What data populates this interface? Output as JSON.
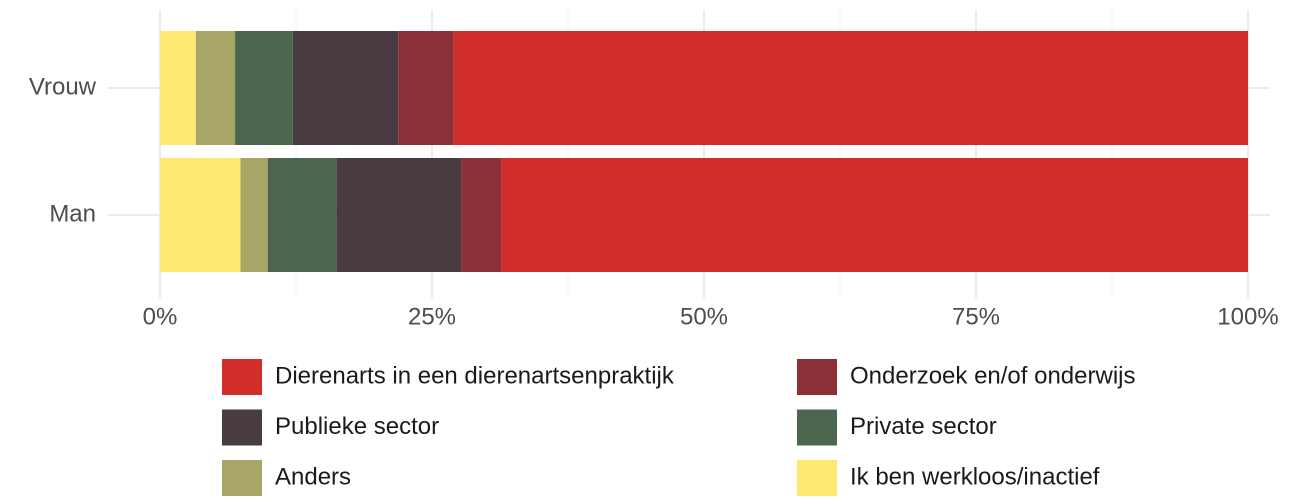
{
  "chart_data": {
    "type": "stacked_bar_horizontal",
    "categories": [
      "Vrouw",
      "Man"
    ],
    "series": [
      {
        "name": "Dierenarts in een dierenartsenpraktijk",
        "color": "#d12d2b",
        "values": [
          73.0,
          68.6
        ]
      },
      {
        "name": "Onderzoek en/of onderwijs",
        "color": "#8b3037",
        "values": [
          5.1,
          3.7
        ]
      },
      {
        "name": "Publieke sector",
        "color": "#483c42",
        "values": [
          9.7,
          11.5
        ]
      },
      {
        "name": "Private sector",
        "color": "#4d6650",
        "values": [
          5.3,
          6.3
        ]
      },
      {
        "name": "Anders",
        "color": "#a8a666",
        "values": [
          3.6,
          2.5
        ]
      },
      {
        "name": "Ik ben werkloos/inactief",
        "color": "#fde871",
        "values": [
          3.3,
          7.4
        ]
      }
    ],
    "xlim": [
      0,
      100
    ],
    "xticks": [
      {
        "value": 0,
        "label": "0%"
      },
      {
        "value": 25,
        "label": "25%"
      },
      {
        "value": 50,
        "label": "50%"
      },
      {
        "value": 75,
        "label": "75%"
      },
      {
        "value": 100,
        "label": "100%"
      }
    ],
    "xminorticks": [
      12.5,
      37.5,
      62.5,
      87.5
    ],
    "grid": true,
    "legend": "bottom"
  }
}
